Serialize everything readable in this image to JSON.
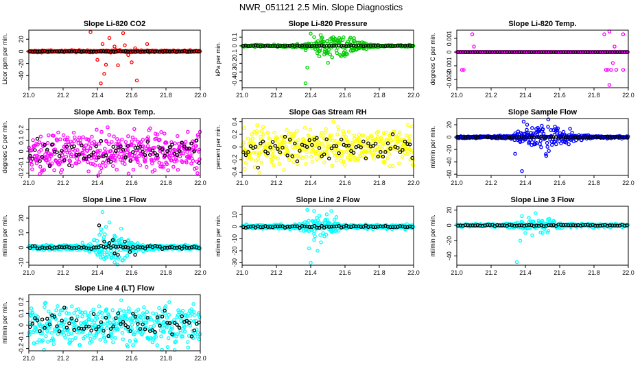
{
  "figure_title": "NWR_051121  2.5 Min. Slope Diagnostics",
  "chart_data": [
    {
      "id": "co2",
      "type": "scatter",
      "title": "Slope Li-820 CO2",
      "ylabel": "Licor ppm per min.",
      "xlim": [
        21.0,
        22.0
      ],
      "ylim": [
        -60,
        35
      ],
      "xticks": [
        21.0,
        21.2,
        21.4,
        21.6,
        21.8,
        22.0
      ],
      "yticks": [
        -40,
        -20,
        0,
        20
      ],
      "color": "#ff0000",
      "base_noise": 0.8,
      "density": "uniform",
      "outliers": [
        [
          21.36,
          32
        ],
        [
          21.47,
          22
        ],
        [
          21.55,
          30
        ],
        [
          21.43,
          12
        ],
        [
          21.5,
          8
        ],
        [
          21.56,
          10
        ],
        [
          21.4,
          -14
        ],
        [
          21.45,
          -22
        ],
        [
          21.52,
          -23
        ],
        [
          21.6,
          -18
        ],
        [
          21.44,
          -37
        ],
        [
          21.63,
          -48
        ],
        [
          21.42,
          -53
        ],
        [
          21.69,
          12
        ],
        [
          21.62,
          5
        ],
        [
          21.58,
          -6
        ]
      ],
      "black_outliers": []
    },
    {
      "id": "pressure",
      "type": "scatter",
      "title": "Slope Li-820 Pressure",
      "ylabel": "kPa per min.",
      "xlim": [
        21.0,
        22.0
      ],
      "ylim": [
        -0.48,
        0.18
      ],
      "xticks": [
        21.0,
        21.2,
        21.4,
        21.6,
        21.8,
        22.0
      ],
      "yticks": [
        -0.4,
        -0.3,
        -0.2,
        -0.1,
        0.0,
        0.1
      ],
      "color": "#00cc00",
      "base_noise": 0.005,
      "density": "burst",
      "burst_center": 21.55,
      "burst_width": 0.2,
      "burst_amp": 0.06,
      "outliers": [
        [
          21.38,
          -0.25
        ],
        [
          21.37,
          -0.43
        ],
        [
          21.4,
          0.14
        ],
        [
          21.42,
          0.1
        ],
        [
          21.37,
          -0.05
        ],
        [
          21.45,
          -0.12
        ],
        [
          21.5,
          -0.08
        ],
        [
          21.6,
          -0.06
        ],
        [
          21.65,
          0.06
        ],
        [
          21.7,
          0.04
        ]
      ],
      "black_outliers": []
    },
    {
      "id": "temp",
      "type": "scatter",
      "title": "Slope Li-820 Temp.",
      "ylabel": "degrees C per min.",
      "xlim": [
        21.0,
        22.0
      ],
      "ylim": [
        -0.0026,
        0.0016
      ],
      "xticks": [
        21.0,
        21.2,
        21.4,
        21.6,
        21.8,
        22.0
      ],
      "yticks": [
        -0.002,
        -0.001,
        0.0,
        0.001
      ],
      "color": "#ff00ff",
      "base_noise": 0.0,
      "density": "uniform",
      "outliers": [
        [
          21.03,
          -0.0013
        ],
        [
          21.04,
          -0.0013
        ],
        [
          21.09,
          0.0013
        ],
        [
          21.1,
          0.0004
        ],
        [
          21.86,
          0.0013
        ],
        [
          21.87,
          -0.0013
        ],
        [
          21.88,
          -0.0013
        ],
        [
          21.89,
          0.0015
        ],
        [
          21.9,
          -0.0013
        ],
        [
          21.91,
          -0.0008
        ],
        [
          21.92,
          0.0004
        ],
        [
          21.97,
          -0.0013
        ],
        [
          21.97,
          0.0013
        ],
        [
          21.89,
          -0.0024
        ],
        [
          21.93,
          -0.0013
        ]
      ],
      "black_outliers": []
    },
    {
      "id": "box",
      "type": "scatter",
      "title": "Slope Amb. Box Temp.",
      "ylabel": "degrees C per min.",
      "xlim": [
        21.0,
        22.0
      ],
      "ylim": [
        -0.22,
        0.3
      ],
      "xticks": [
        21.0,
        21.2,
        21.4,
        21.6,
        21.8,
        22.0
      ],
      "yticks": [
        -0.2,
        -0.1,
        0.0,
        0.1,
        0.2
      ],
      "color": "#ff00ff",
      "base_noise": 0.09,
      "density": "uniform",
      "outliers": [],
      "black_outliers": []
    },
    {
      "id": "rh",
      "type": "scatter",
      "title": "Slope Gas Stream RH",
      "ylabel": "percent per min.",
      "xlim": [
        21.0,
        22.0
      ],
      "ylim": [
        -0.45,
        0.45
      ],
      "xticks": [
        21.0,
        21.2,
        21.4,
        21.6,
        21.8,
        22.0
      ],
      "yticks": [
        -0.4,
        -0.2,
        0.0,
        0.2,
        0.4
      ],
      "color": "#ffff00",
      "base_noise": 0.16,
      "density": "uniform",
      "outliers": [],
      "black_outliers": []
    },
    {
      "id": "sample",
      "type": "scatter",
      "title": "Slope Sample Flow",
      "ylabel": "ml/min per min.",
      "xlim": [
        21.0,
        22.0
      ],
      "ylim": [
        -62,
        30
      ],
      "xticks": [
        21.0,
        21.2,
        21.4,
        21.6,
        21.8,
        22.0
      ],
      "yticks": [
        -60,
        -40,
        -20,
        0,
        20
      ],
      "color": "#0000ff",
      "base_noise": 0.8,
      "density": "burst",
      "burst_center": 21.52,
      "burst_width": 0.2,
      "burst_amp": 10,
      "outliers": [
        [
          21.34,
          -27
        ],
        [
          21.38,
          -55
        ],
        [
          21.39,
          25
        ],
        [
          21.41,
          20
        ],
        [
          21.42,
          -10
        ],
        [
          21.37,
          -8
        ]
      ],
      "black_outliers": []
    },
    {
      "id": "line1",
      "type": "scatter",
      "title": "Slope Line 1 Flow",
      "ylabel": "ml/min per min.",
      "xlim": [
        21.0,
        22.0
      ],
      "ylim": [
        -12,
        28
      ],
      "xticks": [
        21.0,
        21.2,
        21.4,
        21.6,
        21.8,
        22.0
      ],
      "yticks": [
        -10,
        0,
        10,
        20
      ],
      "color": "#00ffff",
      "base_noise": 0.8,
      "density": "burst",
      "burst_center": 21.48,
      "burst_width": 0.15,
      "burst_amp": 5,
      "outliers": [
        [
          21.43,
          24
        ],
        [
          21.47,
          17
        ],
        [
          21.45,
          14
        ],
        [
          21.42,
          10
        ],
        [
          21.5,
          8
        ],
        [
          21.54,
          6
        ],
        [
          21.58,
          5
        ],
        [
          21.4,
          -5
        ],
        [
          21.44,
          -8
        ],
        [
          21.5,
          -10
        ],
        [
          21.56,
          -7
        ]
      ],
      "black_outliers": [
        [
          21.41,
          15
        ],
        [
          21.44,
          4
        ],
        [
          21.47,
          3
        ],
        [
          21.49,
          5
        ],
        [
          21.5,
          -4
        ],
        [
          21.52,
          -5
        ],
        [
          21.56,
          4
        ],
        [
          21.59,
          -3
        ],
        [
          21.62,
          -5
        ]
      ]
    },
    {
      "id": "line2",
      "type": "scatter",
      "title": "Slope Line 2 Flow",
      "ylabel": "ml/min per min.",
      "xlim": [
        21.0,
        22.0
      ],
      "ylim": [
        -32,
        17
      ],
      "xticks": [
        21.0,
        21.2,
        21.4,
        21.6,
        21.8,
        22.0
      ],
      "yticks": [
        -30,
        -20,
        -10,
        0,
        10
      ],
      "color": "#00ffff",
      "base_noise": 0.8,
      "density": "burst",
      "burst_center": 21.45,
      "burst_width": 0.12,
      "burst_amp": 4,
      "outliers": [
        [
          21.38,
          14
        ],
        [
          21.42,
          13
        ],
        [
          21.45,
          9
        ],
        [
          21.52,
          13
        ],
        [
          21.55,
          8
        ],
        [
          21.39,
          -18
        ],
        [
          21.42,
          -11
        ],
        [
          21.44,
          -20
        ],
        [
          21.46,
          -13
        ],
        [
          21.4,
          -30
        ],
        [
          21.48,
          -8
        ]
      ],
      "black_outliers": []
    },
    {
      "id": "line3",
      "type": "scatter",
      "title": "Slope Line 3 Flow",
      "ylabel": "ml/min per min.",
      "xlim": [
        21.0,
        22.0
      ],
      "ylim": [
        -52,
        25
      ],
      "xticks": [
        21.0,
        21.2,
        21.4,
        21.6,
        21.8,
        22.0
      ],
      "yticks": [
        -40,
        -20,
        0,
        20
      ],
      "color": "#00ffff",
      "base_noise": 1.0,
      "density": "burst",
      "burst_center": 21.48,
      "burst_width": 0.15,
      "burst_amp": 3,
      "outliers": [
        [
          21.35,
          -48
        ],
        [
          21.37,
          -20
        ],
        [
          21.4,
          -10
        ],
        [
          21.38,
          12
        ],
        [
          21.42,
          10
        ],
        [
          21.46,
          16
        ],
        [
          21.44,
          -13
        ],
        [
          21.5,
          -10
        ]
      ],
      "black_outliers": []
    },
    {
      "id": "line4",
      "type": "scatter",
      "title": "Slope Line 4 (LT) Flow",
      "ylabel": "ml/min per min.",
      "xlim": [
        21.0,
        22.0
      ],
      "ylim": [
        -0.22,
        0.26
      ],
      "xticks": [
        21.0,
        21.2,
        21.4,
        21.6,
        21.8,
        22.0
      ],
      "yticks": [
        -0.2,
        -0.1,
        0.0,
        0.1,
        0.2
      ],
      "color": "#00ffff",
      "base_noise": 0.085,
      "density": "uniform",
      "outliers": [],
      "black_outliers": []
    }
  ]
}
